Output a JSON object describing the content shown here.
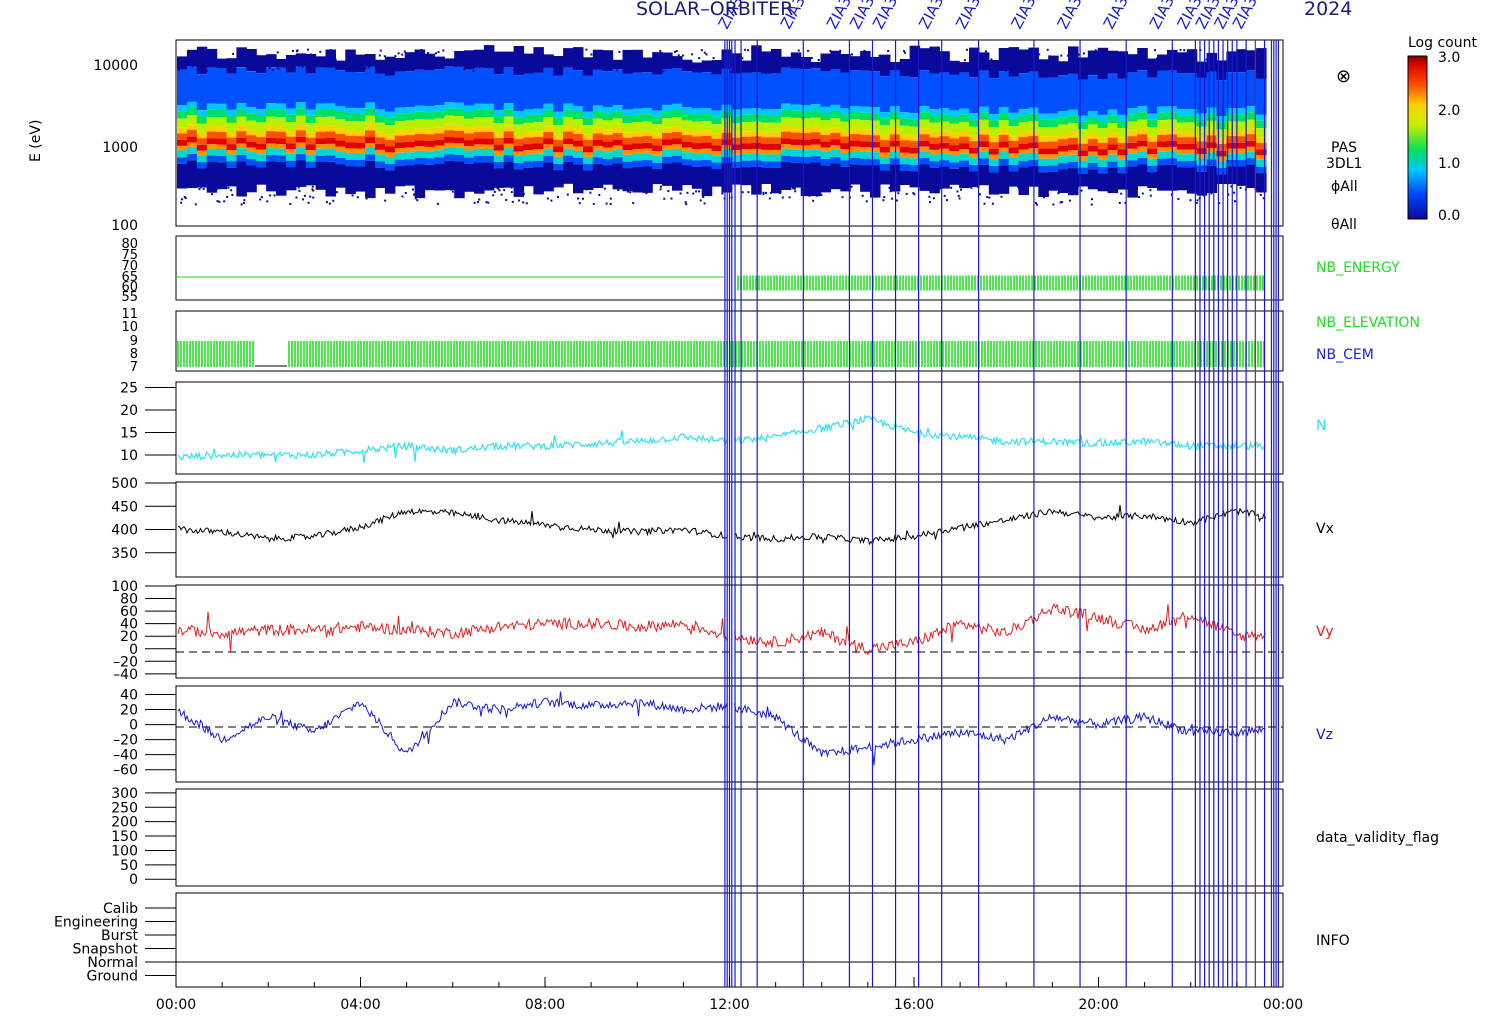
{
  "title": "SOLAR–ORBITER … 2024",
  "title_left": "SOLAR–ORBITER",
  "title_right": "2024",
  "colorbar": {
    "label": "Log count",
    "ticks": [
      "3.0",
      "2.0",
      "1.0",
      "0.0"
    ],
    "range": [
      0,
      3
    ]
  },
  "event_label": "ZIA3",
  "x_axis": {
    "ticks": [
      "00:00",
      "04:00",
      "08:00",
      "12:00",
      "16:00",
      "20:00",
      "00:00"
    ],
    "range_hours": [
      0,
      24
    ]
  },
  "panels": {
    "spectrogram": {
      "ylabel": "E (eV)",
      "yticks": [
        "10000",
        "1000",
        "100"
      ],
      "ylim": [
        100,
        16000
      ],
      "scale": "log",
      "labels": [
        "PAS",
        "3DL1",
        "ϕAll",
        "θAll"
      ],
      "marker": "⊗"
    },
    "nb_energy": {
      "yticks": [
        "80",
        "75",
        "70",
        "65",
        "60",
        "55",
        "55"
      ],
      "ylim": [
        53,
        82
      ],
      "label": "NB_ENERGY",
      "label_color": "#22dd22"
    },
    "nb_elevation": {
      "yticks": [
        "11",
        "10",
        "9",
        "8",
        "7"
      ],
      "ylim": [
        7,
        11
      ],
      "labels": [
        {
          "text": "NB_ELEVATION",
          "color": "#22dd22"
        },
        {
          "text": "NB_CEM",
          "color": "#2222dd"
        }
      ]
    },
    "density": {
      "yticks": [
        "25",
        "20",
        "15",
        "10"
      ],
      "ylim": [
        6,
        26
      ],
      "label": "N",
      "color": "#33e0ee"
    },
    "vx": {
      "yticks": [
        "500",
        "450",
        "400",
        "350"
      ],
      "ylim": [
        300,
        500
      ],
      "label": "Vx",
      "color": "#000000"
    },
    "vy": {
      "yticks": [
        "100",
        "80",
        "60",
        "40",
        "20",
        "0",
        "–20",
        "–40"
      ],
      "ylim": [
        -45,
        100
      ],
      "label": "Vy",
      "color": "#e02020"
    },
    "vz": {
      "yticks": [
        "40",
        "20",
        "0",
        "–20",
        "–40",
        "–60"
      ],
      "ylim": [
        -75,
        50
      ],
      "label": "Vz",
      "color": "#1a1acc"
    },
    "validity": {
      "yticks": [
        "300",
        "250",
        "200",
        "150",
        "100",
        "50",
        "0"
      ],
      "ylim": [
        -20,
        310
      ],
      "label": "data_validity_flag"
    },
    "info": {
      "yticks": [
        "Calib",
        "Engineering",
        "Burst",
        "Snapshot",
        "Normal",
        "Ground"
      ],
      "label": "INFO"
    }
  },
  "chart_data": {
    "type": "line",
    "x_unit": "hours since 00:00",
    "event_lines_hours": [
      11.9,
      11.95,
      12.0,
      12.05,
      12.12,
      12.25,
      12.6,
      13.6,
      14.6,
      15.1,
      15.6,
      16.1,
      16.6,
      17.4,
      18.6,
      19.6,
      20.6,
      21.6,
      22.1,
      22.2,
      22.3,
      22.4,
      22.5,
      22.6,
      22.7,
      22.8,
      22.9,
      23.0,
      23.2,
      23.4,
      23.6,
      23.75,
      23.8,
      23.85,
      23.9
    ],
    "nb_energy": {
      "value": 64,
      "note": "constant line then dense pulses after 12:10",
      "pulse_range": [
        57,
        64
      ]
    },
    "nb_elevation": {
      "pulse_range": [
        7,
        9
      ],
      "gap_hours": [
        1.7,
        2.4
      ]
    },
    "series": [
      {
        "name": "N",
        "x": [
          0,
          1,
          2,
          3,
          4,
          5,
          6,
          7,
          8,
          9,
          10,
          11,
          12,
          13,
          14,
          15,
          16,
          17,
          18,
          19,
          20,
          21,
          22,
          23,
          24
        ],
        "values": [
          9.5,
          10,
          10,
          10,
          11,
          12,
          11,
          12,
          12,
          12.5,
          13,
          14,
          13,
          14,
          16,
          18,
          15,
          14,
          13,
          13,
          12.5,
          13,
          12,
          12,
          12
        ]
      },
      {
        "name": "Vx",
        "x": [
          0,
          1,
          2,
          3,
          4,
          5,
          6,
          7,
          8,
          9,
          10,
          11,
          12,
          13,
          14,
          15,
          16,
          17,
          18,
          19,
          20,
          21,
          22,
          23,
          24
        ],
        "values": [
          400,
          395,
          380,
          385,
          405,
          440,
          435,
          420,
          410,
          400,
          395,
          400,
          385,
          380,
          385,
          375,
          385,
          405,
          420,
          440,
          425,
          430,
          415,
          440,
          420
        ]
      },
      {
        "name": "Vy",
        "x": [
          0,
          1,
          2,
          3,
          4,
          5,
          6,
          7,
          8,
          9,
          10,
          11,
          12,
          13,
          14,
          15,
          16,
          17,
          18,
          19,
          20,
          21,
          22,
          23,
          24
        ],
        "values": [
          30,
          25,
          30,
          30,
          35,
          30,
          25,
          35,
          40,
          40,
          35,
          40,
          20,
          10,
          25,
          0,
          10,
          40,
          25,
          65,
          50,
          30,
          55,
          20,
          25
        ]
      },
      {
        "name": "Vz",
        "x": [
          0,
          1,
          2,
          3,
          4,
          5,
          6,
          7,
          8,
          9,
          10,
          11,
          12,
          13,
          14,
          15,
          16,
          17,
          18,
          19,
          20,
          21,
          22,
          23,
          24
        ],
        "values": [
          20,
          -20,
          10,
          -10,
          30,
          -40,
          30,
          20,
          30,
          25,
          30,
          20,
          25,
          10,
          -40,
          -30,
          -20,
          -10,
          -20,
          10,
          0,
          10,
          -10,
          -10,
          -5
        ]
      }
    ]
  }
}
